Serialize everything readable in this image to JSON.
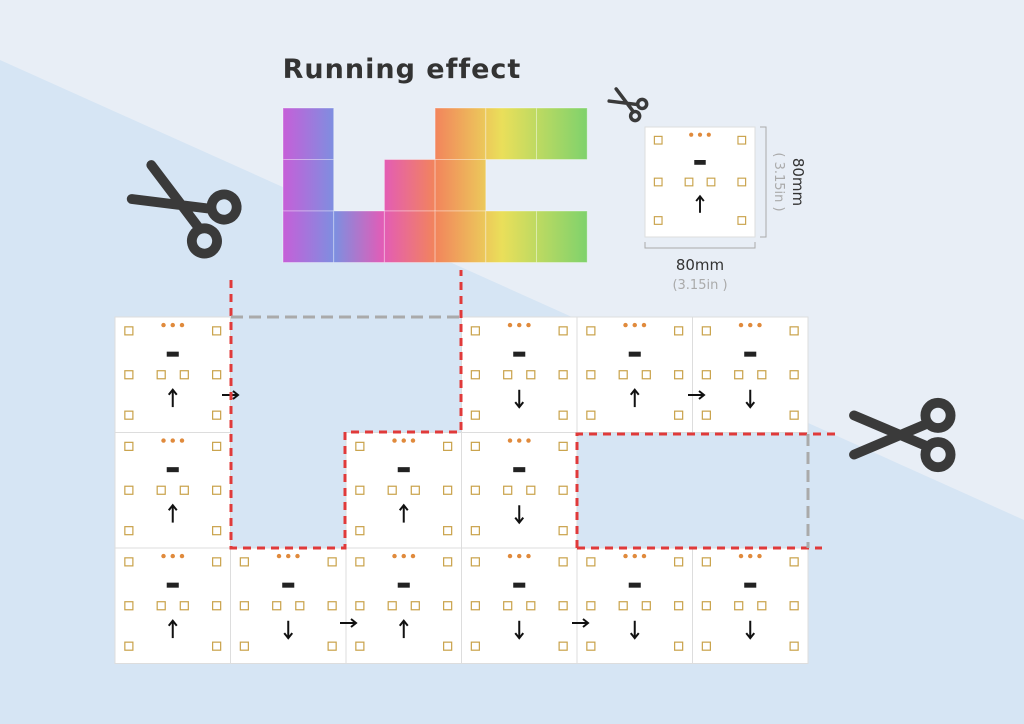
{
  "title": "Running effect",
  "dimensions": {
    "height": "80mm",
    "height_in": "( 3.15in )",
    "width": "80mm",
    "width_in": "(3.15in )"
  }
}
